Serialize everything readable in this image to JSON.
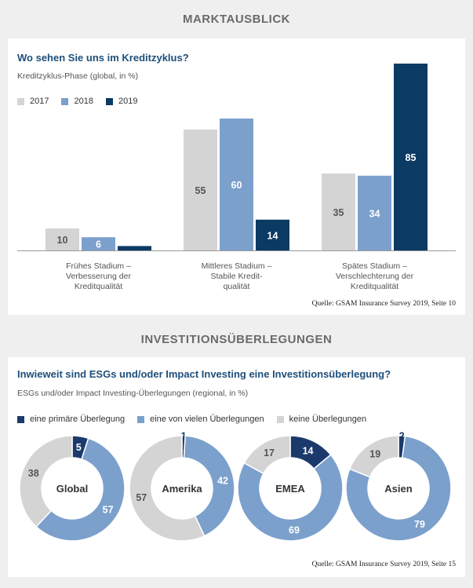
{
  "section1": {
    "heading": "MARKTAUSBLICK"
  },
  "section2": {
    "heading": "INVESTITIONSÜBERLEGUNGEN"
  },
  "colors": {
    "2017": "#d4d4d4",
    "2018": "#7ba0cc",
    "2019": "#0b3a63",
    "primary": "#1b3a6b",
    "many": "#7ba0cc",
    "none": "#d4d4d4",
    "title": "#1e4f7a"
  },
  "chart_data": [
    {
      "type": "bar",
      "title": "Wo sehen Sie uns im Kreditzyklus?",
      "subtitle": "Kreditzyklus-Phase  (global, in %)",
      "categories": [
        [
          "Frühes Stadium –",
          "Verbesserung der",
          "Kreditqualität"
        ],
        [
          "Mittleres Stadium –",
          "Stabile Kredit-",
          "qualität"
        ],
        [
          "Spätes Stadium –",
          "Verschlechterung der",
          "Kreditqualität"
        ]
      ],
      "series": [
        {
          "name": "2017",
          "values": [
            10,
            55,
            35
          ]
        },
        {
          "name": "2018",
          "values": [
            6,
            60,
            34
          ]
        },
        {
          "name": "2019",
          "values": [
            2,
            14,
            85
          ]
        }
      ],
      "data_labels": [
        [
          "10",
          "55",
          "35"
        ],
        [
          "6",
          "60",
          "34"
        ],
        [
          "",
          "14",
          "85"
        ]
      ],
      "ylim": [
        0,
        85
      ],
      "legend": "top-left",
      "source": "Quelle: GSAM Insurance Survey 2019, Seite 10"
    },
    {
      "type": "pie",
      "donut": true,
      "title": "Inwieweit sind ESGs und/oder Impact Investing eine Investitionsüberlegung?",
      "subtitle": "ESGs und/oder Impact Investing-Überlegungen (regional, in %)",
      "legend_labels": [
        "eine primäre Überlegung",
        "eine von vielen Überlegungen",
        "keine Überlegungen"
      ],
      "charts": [
        {
          "label": "Global",
          "values": [
            5,
            57,
            38
          ]
        },
        {
          "label": "Amerika",
          "values": [
            1,
            42,
            57
          ]
        },
        {
          "label": "EMEA",
          "values": [
            14,
            69,
            17
          ]
        },
        {
          "label": "Asien",
          "values": [
            2,
            79,
            19
          ]
        }
      ],
      "legend": "top-left",
      "source": "Quelle: GSAM Insurance Survey 2019, Seite 15"
    }
  ]
}
